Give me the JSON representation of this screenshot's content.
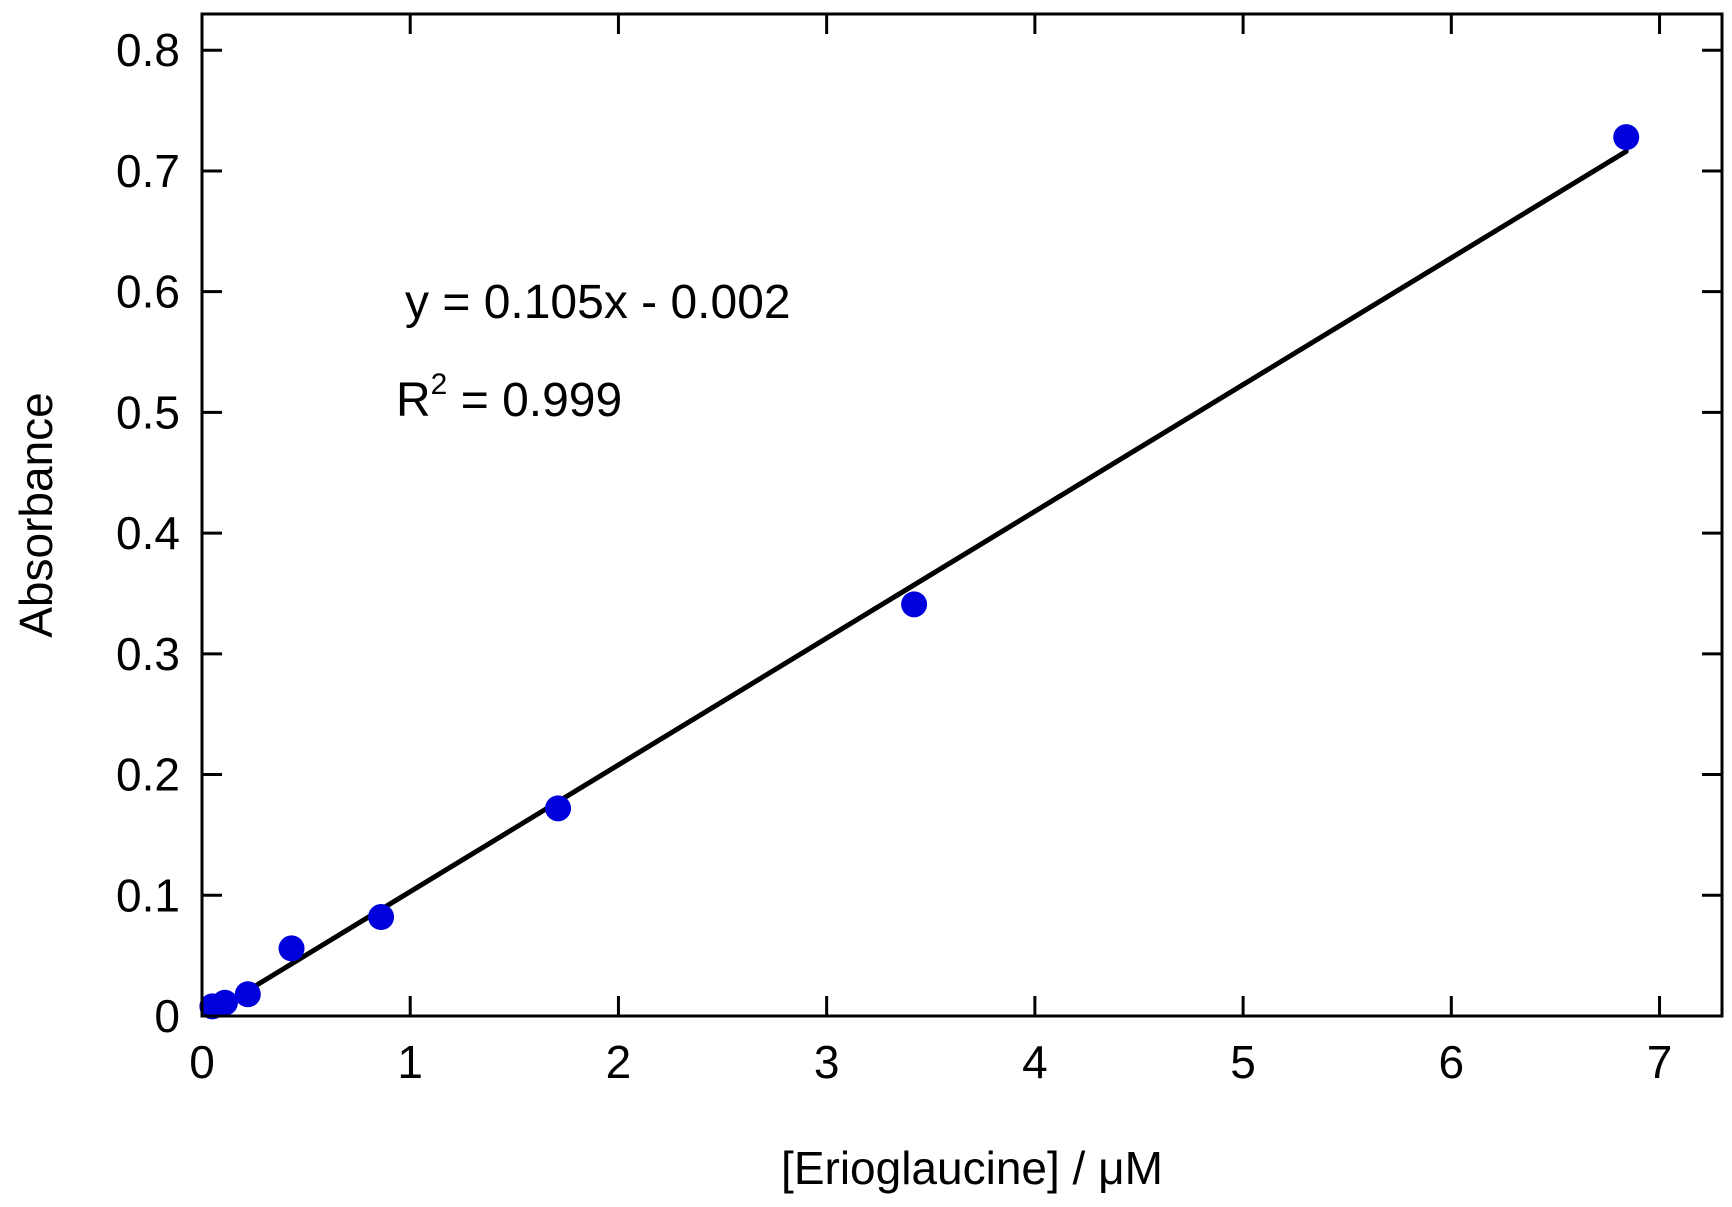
{
  "chart_data": {
    "type": "scatter",
    "title": "",
    "xlabel": "[Erioglaucine] / μM",
    "ylabel": "Absorbance",
    "xlim": [
      0,
      7.3
    ],
    "ylim": [
      0,
      0.83
    ],
    "xticks": [
      0,
      1,
      2,
      3,
      4,
      5,
      6,
      7
    ],
    "yticks": [
      0,
      0.1,
      0.2,
      0.3,
      0.4,
      0.5,
      0.6,
      0.7,
      0.8
    ],
    "xtick_labels": [
      "0",
      "1",
      "2",
      "3",
      "4",
      "5",
      "6",
      "7"
    ],
    "ytick_labels": [
      "0",
      "0.1",
      "0.2",
      "0.3",
      "0.4",
      "0.5",
      "0.6",
      "0.7",
      "0.8"
    ],
    "grid": false,
    "legend": "none",
    "series": [
      {
        "type": "scatter",
        "color": "#0000dd",
        "x": [
          0.05,
          0.11,
          0.22,
          0.43,
          0.86,
          1.71,
          3.42,
          6.84
        ],
        "y": [
          0.008,
          0.011,
          0.018,
          0.056,
          0.082,
          0.172,
          0.341,
          0.728
        ]
      },
      {
        "type": "line",
        "color": "#000000",
        "fit": {
          "slope": 0.105,
          "intercept": -0.002
        },
        "x": [
          0.05,
          6.84
        ]
      }
    ],
    "annotations": {
      "equation": "y = 0.105x - 0.002",
      "r2_base": "R",
      "r2_sup": "2",
      "r2_rest": " = 0.999"
    }
  }
}
